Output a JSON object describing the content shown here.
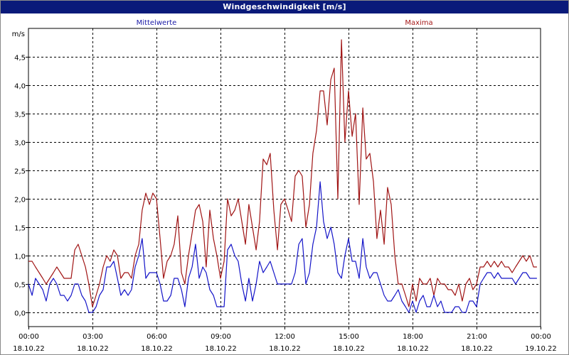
{
  "window": {
    "title": "Windgeschwindigkeit [m/s]"
  },
  "chart_data": {
    "type": "line",
    "title": "Windgeschwindigkeit [m/s]",
    "ylabel": "m/s",
    "xlabel": "",
    "ylim": [
      -0.25,
      5.0
    ],
    "xlim": [
      0,
      24
    ],
    "grid": true,
    "legend": [
      "Mittelwerte",
      "Maxima"
    ],
    "y_ticks": [
      {
        "value": 0.0,
        "label": "0,0"
      },
      {
        "value": 0.5,
        "label": "0,5"
      },
      {
        "value": 1.0,
        "label": "1,0"
      },
      {
        "value": 1.5,
        "label": "1,5"
      },
      {
        "value": 2.0,
        "label": "2,0"
      },
      {
        "value": 2.5,
        "label": "2,5"
      },
      {
        "value": 3.0,
        "label": "3,0"
      },
      {
        "value": 3.5,
        "label": "3,5"
      },
      {
        "value": 4.0,
        "label": "4,0"
      },
      {
        "value": 4.5,
        "label": "4,5"
      }
    ],
    "x_ticks": [
      {
        "value": 0,
        "time": "00:00",
        "date": "18.10.22"
      },
      {
        "value": 3,
        "time": "03:00",
        "date": "18.10.22"
      },
      {
        "value": 6,
        "time": "06:00",
        "date": "18.10.22"
      },
      {
        "value": 9,
        "time": "09:00",
        "date": "18.10.22"
      },
      {
        "value": 12,
        "time": "12:00",
        "date": "18.10.22"
      },
      {
        "value": 15,
        "time": "15:00",
        "date": "18.10.22"
      },
      {
        "value": 18,
        "time": "18:00",
        "date": "18.10.22"
      },
      {
        "value": 21,
        "time": "21:00",
        "date": "18.10.22"
      },
      {
        "value": 24,
        "time": "00:00",
        "date": "19.10.22"
      }
    ],
    "series": [
      {
        "name": "Mittelwerte",
        "color": "#1414c8",
        "points": [
          [
            0.0,
            0.5
          ],
          [
            0.17,
            0.3
          ],
          [
            0.33,
            0.6
          ],
          [
            0.5,
            0.5
          ],
          [
            0.67,
            0.4
          ],
          [
            0.83,
            0.2
          ],
          [
            1.0,
            0.5
          ],
          [
            1.17,
            0.6
          ],
          [
            1.33,
            0.5
          ],
          [
            1.5,
            0.3
          ],
          [
            1.67,
            0.3
          ],
          [
            1.83,
            0.2
          ],
          [
            2.0,
            0.3
          ],
          [
            2.17,
            0.5
          ],
          [
            2.33,
            0.5
          ],
          [
            2.5,
            0.3
          ],
          [
            2.67,
            0.2
          ],
          [
            2.83,
            0.0
          ],
          [
            3.0,
            0.0
          ],
          [
            3.17,
            0.1
          ],
          [
            3.33,
            0.3
          ],
          [
            3.5,
            0.4
          ],
          [
            3.67,
            0.8
          ],
          [
            3.83,
            0.8
          ],
          [
            4.0,
            0.9
          ],
          [
            4.17,
            0.6
          ],
          [
            4.33,
            0.3
          ],
          [
            4.5,
            0.4
          ],
          [
            4.67,
            0.3
          ],
          [
            4.83,
            0.4
          ],
          [
            5.0,
            0.8
          ],
          [
            5.17,
            1.0
          ],
          [
            5.33,
            1.3
          ],
          [
            5.5,
            0.6
          ],
          [
            5.67,
            0.7
          ],
          [
            5.83,
            0.7
          ],
          [
            6.0,
            0.7
          ],
          [
            6.17,
            0.5
          ],
          [
            6.33,
            0.2
          ],
          [
            6.5,
            0.2
          ],
          [
            6.67,
            0.3
          ],
          [
            6.83,
            0.6
          ],
          [
            7.0,
            0.6
          ],
          [
            7.17,
            0.4
          ],
          [
            7.33,
            0.1
          ],
          [
            7.5,
            0.6
          ],
          [
            7.67,
            0.8
          ],
          [
            7.83,
            1.2
          ],
          [
            8.0,
            0.6
          ],
          [
            8.17,
            0.8
          ],
          [
            8.33,
            0.7
          ],
          [
            8.5,
            0.4
          ],
          [
            8.67,
            0.3
          ],
          [
            8.83,
            0.1
          ],
          [
            9.0,
            0.1
          ],
          [
            9.17,
            0.1
          ],
          [
            9.33,
            1.1
          ],
          [
            9.5,
            1.2
          ],
          [
            9.67,
            1.0
          ],
          [
            9.83,
            0.9
          ],
          [
            10.0,
            0.5
          ],
          [
            10.17,
            0.2
          ],
          [
            10.33,
            0.6
          ],
          [
            10.5,
            0.2
          ],
          [
            10.67,
            0.5
          ],
          [
            10.83,
            0.9
          ],
          [
            11.0,
            0.7
          ],
          [
            11.17,
            0.8
          ],
          [
            11.33,
            0.9
          ],
          [
            11.5,
            0.7
          ],
          [
            11.67,
            0.5
          ],
          [
            11.83,
            0.5
          ],
          [
            12.0,
            0.5
          ],
          [
            12.17,
            0.5
          ],
          [
            12.33,
            0.5
          ],
          [
            12.5,
            0.7
          ],
          [
            12.67,
            1.2
          ],
          [
            12.83,
            1.3
          ],
          [
            13.0,
            0.5
          ],
          [
            13.17,
            0.7
          ],
          [
            13.33,
            1.2
          ],
          [
            13.5,
            1.5
          ],
          [
            13.67,
            2.3
          ],
          [
            13.83,
            1.6
          ],
          [
            14.0,
            1.3
          ],
          [
            14.17,
            1.5
          ],
          [
            14.33,
            1.2
          ],
          [
            14.5,
            0.7
          ],
          [
            14.67,
            0.6
          ],
          [
            14.83,
            1.0
          ],
          [
            15.0,
            1.3
          ],
          [
            15.17,
            0.9
          ],
          [
            15.33,
            0.9
          ],
          [
            15.5,
            0.6
          ],
          [
            15.67,
            1.3
          ],
          [
            15.83,
            0.8
          ],
          [
            16.0,
            0.6
          ],
          [
            16.17,
            0.7
          ],
          [
            16.33,
            0.7
          ],
          [
            16.5,
            0.5
          ],
          [
            16.67,
            0.3
          ],
          [
            16.83,
            0.2
          ],
          [
            17.0,
            0.2
          ],
          [
            17.17,
            0.3
          ],
          [
            17.33,
            0.4
          ],
          [
            17.5,
            0.2
          ],
          [
            17.67,
            0.1
          ],
          [
            17.83,
            0.0
          ],
          [
            18.0,
            0.2
          ],
          [
            18.17,
            0.0
          ],
          [
            18.33,
            0.2
          ],
          [
            18.5,
            0.3
          ],
          [
            18.67,
            0.1
          ],
          [
            18.83,
            0.1
          ],
          [
            19.0,
            0.3
          ],
          [
            19.17,
            0.1
          ],
          [
            19.33,
            0.2
          ],
          [
            19.5,
            0.0
          ],
          [
            19.67,
            0.0
          ],
          [
            19.83,
            0.0
          ],
          [
            20.0,
            0.1
          ],
          [
            20.17,
            0.1
          ],
          [
            20.33,
            0.0
          ],
          [
            20.5,
            0.0
          ],
          [
            20.67,
            0.2
          ],
          [
            20.83,
            0.2
          ],
          [
            21.0,
            0.1
          ],
          [
            21.17,
            0.5
          ],
          [
            21.33,
            0.6
          ],
          [
            21.5,
            0.7
          ],
          [
            21.67,
            0.7
          ],
          [
            21.83,
            0.6
          ],
          [
            22.0,
            0.7
          ],
          [
            22.17,
            0.6
          ],
          [
            22.33,
            0.6
          ],
          [
            22.5,
            0.6
          ],
          [
            22.67,
            0.6
          ],
          [
            22.83,
            0.5
          ],
          [
            23.0,
            0.6
          ],
          [
            23.17,
            0.7
          ],
          [
            23.33,
            0.7
          ],
          [
            23.5,
            0.6
          ],
          [
            23.67,
            0.6
          ],
          [
            23.83,
            0.6
          ]
        ]
      },
      {
        "name": "Maxima",
        "color": "#a01414",
        "points": [
          [
            0.0,
            0.9
          ],
          [
            0.17,
            0.9
          ],
          [
            0.33,
            0.8
          ],
          [
            0.5,
            0.7
          ],
          [
            0.67,
            0.6
          ],
          [
            0.83,
            0.5
          ],
          [
            1.0,
            0.6
          ],
          [
            1.17,
            0.7
          ],
          [
            1.33,
            0.8
          ],
          [
            1.5,
            0.7
          ],
          [
            1.67,
            0.6
          ],
          [
            1.83,
            0.6
          ],
          [
            2.0,
            0.6
          ],
          [
            2.17,
            1.1
          ],
          [
            2.33,
            1.2
          ],
          [
            2.5,
            1.0
          ],
          [
            2.67,
            0.8
          ],
          [
            2.83,
            0.5
          ],
          [
            3.0,
            0.1
          ],
          [
            3.17,
            0.3
          ],
          [
            3.33,
            0.5
          ],
          [
            3.5,
            0.8
          ],
          [
            3.67,
            1.0
          ],
          [
            3.83,
            0.9
          ],
          [
            4.0,
            1.1
          ],
          [
            4.17,
            1.0
          ],
          [
            4.33,
            0.6
          ],
          [
            4.5,
            0.7
          ],
          [
            4.67,
            0.7
          ],
          [
            4.83,
            0.6
          ],
          [
            5.0,
            1.0
          ],
          [
            5.17,
            1.2
          ],
          [
            5.33,
            1.8
          ],
          [
            5.5,
            2.1
          ],
          [
            5.67,
            1.9
          ],
          [
            5.83,
            2.1
          ],
          [
            6.0,
            2.0
          ],
          [
            6.17,
            1.3
          ],
          [
            6.33,
            0.6
          ],
          [
            6.5,
            0.9
          ],
          [
            6.67,
            1.0
          ],
          [
            6.83,
            1.2
          ],
          [
            7.0,
            1.7
          ],
          [
            7.17,
            0.7
          ],
          [
            7.33,
            0.5
          ],
          [
            7.5,
            1.0
          ],
          [
            7.67,
            1.4
          ],
          [
            7.83,
            1.8
          ],
          [
            8.0,
            1.9
          ],
          [
            8.17,
            1.6
          ],
          [
            8.33,
            0.8
          ],
          [
            8.5,
            1.8
          ],
          [
            8.67,
            1.3
          ],
          [
            8.83,
            1.0
          ],
          [
            9.0,
            0.6
          ],
          [
            9.17,
            0.9
          ],
          [
            9.33,
            2.0
          ],
          [
            9.5,
            1.7
          ],
          [
            9.67,
            1.8
          ],
          [
            9.83,
            2.0
          ],
          [
            10.0,
            1.6
          ],
          [
            10.17,
            1.2
          ],
          [
            10.33,
            1.9
          ],
          [
            10.5,
            1.5
          ],
          [
            10.67,
            1.1
          ],
          [
            10.83,
            1.6
          ],
          [
            11.0,
            2.7
          ],
          [
            11.17,
            2.6
          ],
          [
            11.33,
            2.8
          ],
          [
            11.5,
            1.8
          ],
          [
            11.67,
            1.1
          ],
          [
            11.83,
            1.9
          ],
          [
            12.0,
            2.0
          ],
          [
            12.17,
            1.8
          ],
          [
            12.33,
            1.6
          ],
          [
            12.5,
            2.4
          ],
          [
            12.67,
            2.5
          ],
          [
            12.83,
            2.4
          ],
          [
            13.0,
            1.5
          ],
          [
            13.17,
            1.9
          ],
          [
            13.33,
            2.8
          ],
          [
            13.5,
            3.2
          ],
          [
            13.67,
            3.9
          ],
          [
            13.83,
            3.9
          ],
          [
            14.0,
            3.3
          ],
          [
            14.17,
            4.1
          ],
          [
            14.33,
            4.3
          ],
          [
            14.5,
            2.0
          ],
          [
            14.67,
            4.8
          ],
          [
            14.83,
            3.0
          ],
          [
            15.0,
            3.9
          ],
          [
            15.17,
            3.1
          ],
          [
            15.33,
            3.5
          ],
          [
            15.5,
            1.9
          ],
          [
            15.67,
            3.6
          ],
          [
            15.83,
            2.7
          ],
          [
            16.0,
            2.8
          ],
          [
            16.17,
            2.3
          ],
          [
            16.33,
            1.3
          ],
          [
            16.5,
            1.8
          ],
          [
            16.67,
            1.2
          ],
          [
            16.83,
            2.2
          ],
          [
            17.0,
            1.9
          ],
          [
            17.17,
            1.0
          ],
          [
            17.33,
            0.5
          ],
          [
            17.5,
            0.5
          ],
          [
            17.67,
            0.3
          ],
          [
            17.83,
            0.1
          ],
          [
            18.0,
            0.5
          ],
          [
            18.17,
            0.2
          ],
          [
            18.33,
            0.6
          ],
          [
            18.5,
            0.5
          ],
          [
            18.67,
            0.5
          ],
          [
            18.83,
            0.6
          ],
          [
            19.0,
            0.3
          ],
          [
            19.17,
            0.6
          ],
          [
            19.33,
            0.5
          ],
          [
            19.5,
            0.5
          ],
          [
            19.67,
            0.4
          ],
          [
            19.83,
            0.4
          ],
          [
            20.0,
            0.3
          ],
          [
            20.17,
            0.5
          ],
          [
            20.33,
            0.2
          ],
          [
            20.5,
            0.5
          ],
          [
            20.67,
            0.6
          ],
          [
            20.83,
            0.4
          ],
          [
            21.0,
            0.5
          ],
          [
            21.17,
            0.8
          ],
          [
            21.33,
            0.8
          ],
          [
            21.5,
            0.9
          ],
          [
            21.67,
            0.8
          ],
          [
            21.83,
            0.9
          ],
          [
            22.0,
            0.8
          ],
          [
            22.17,
            0.9
          ],
          [
            22.33,
            0.8
          ],
          [
            22.5,
            0.8
          ],
          [
            22.67,
            0.7
          ],
          [
            22.83,
            0.8
          ],
          [
            23.0,
            0.9
          ],
          [
            23.17,
            1.0
          ],
          [
            23.33,
            0.9
          ],
          [
            23.5,
            1.0
          ],
          [
            23.67,
            0.8
          ],
          [
            23.83,
            0.8
          ]
        ]
      }
    ]
  }
}
